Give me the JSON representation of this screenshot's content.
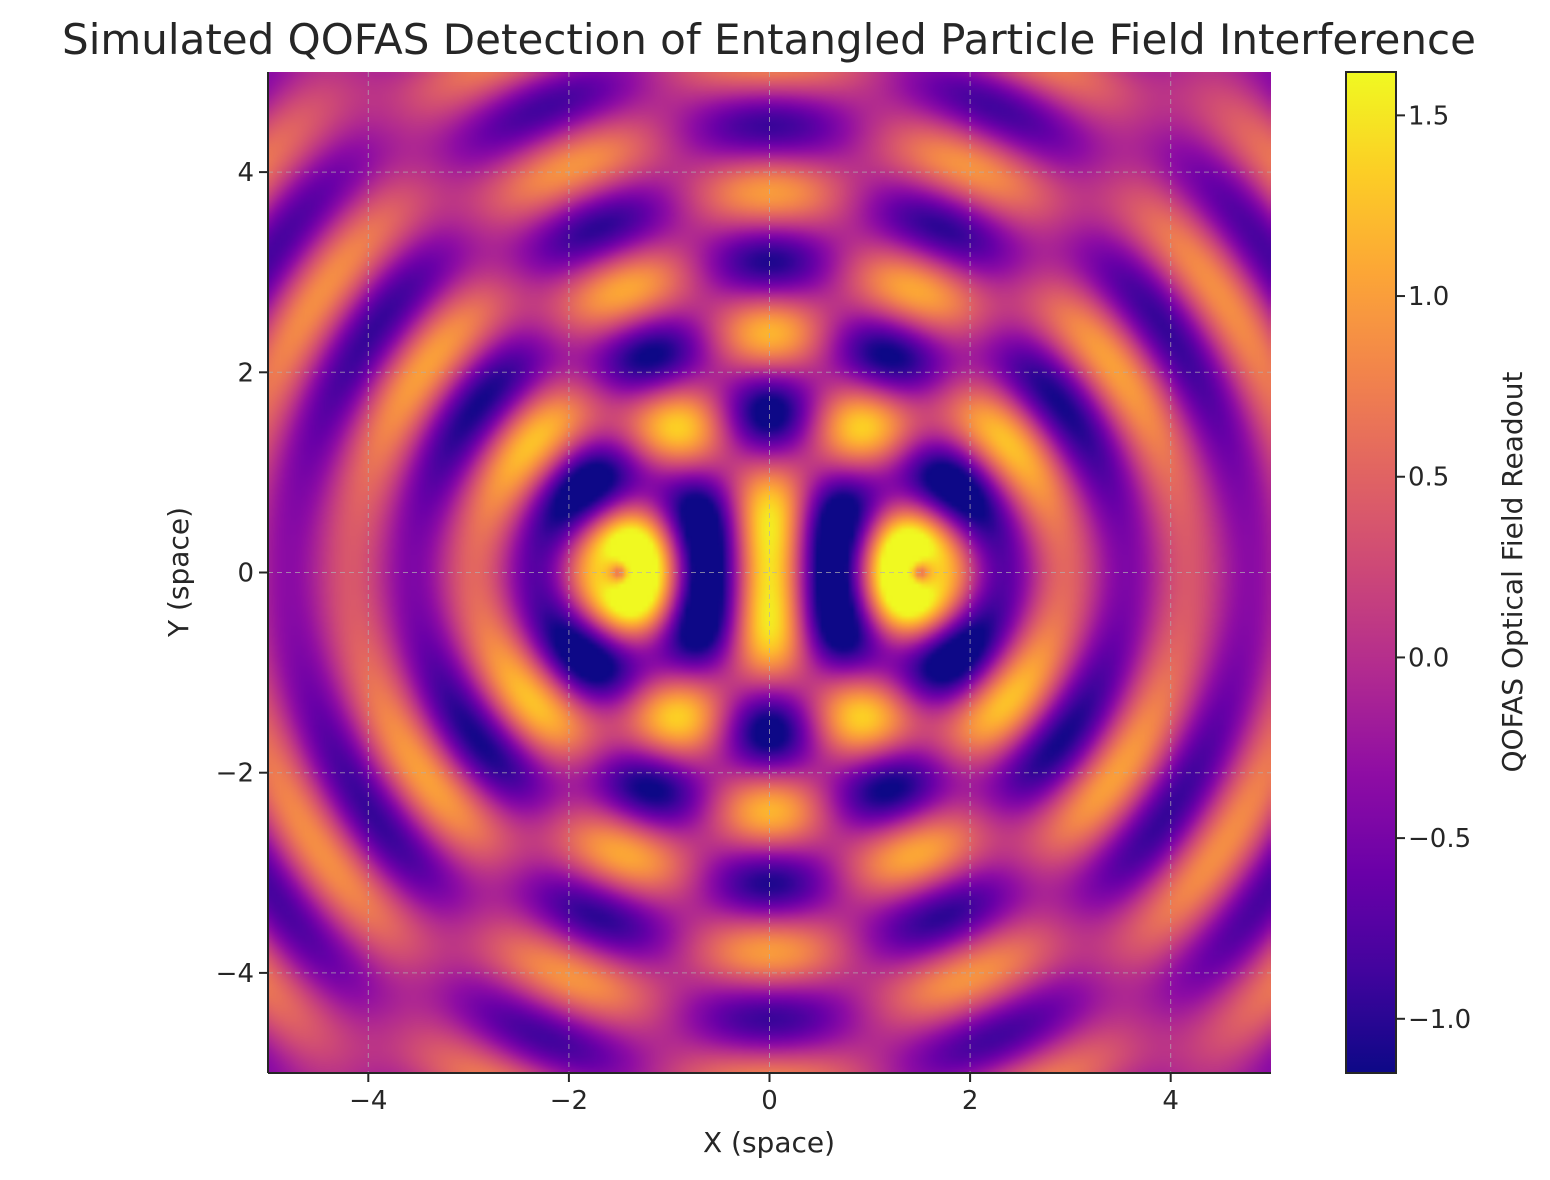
{
  "chart_data": {
    "type": "heatmap",
    "title": "Simulated QOFAS Detection of Entangled Particle Field Interference",
    "xlabel": "X (space)",
    "ylabel": "Y (space)",
    "xlim": [
      -5,
      5
    ],
    "ylim": [
      -5,
      5
    ],
    "x_ticks": [
      -4,
      -2,
      0,
      2,
      4
    ],
    "y_ticks": [
      -4,
      -2,
      0,
      2,
      4
    ],
    "x_tick_labels": [
      "−4",
      "−2",
      "0",
      "2",
      "4"
    ],
    "y_tick_labels": [
      "−4",
      "−2",
      "0",
      "2",
      "4"
    ],
    "grid": true,
    "colormap": "plasma",
    "sources": [
      {
        "x": -1.5,
        "y": 0
      },
      {
        "x": 1.5,
        "y": 0
      }
    ],
    "wave_number": 5,
    "clim": [
      -1.15,
      1.62
    ],
    "colorbar": {
      "label": "QOFAS Optical Field Readout",
      "ticks": [
        -1.0,
        -0.5,
        0.0,
        0.5,
        1.0,
        1.5
      ],
      "tick_labels": [
        "−1.0",
        "−0.5",
        "0.0",
        "0.5",
        "1.0",
        "1.5"
      ]
    }
  }
}
